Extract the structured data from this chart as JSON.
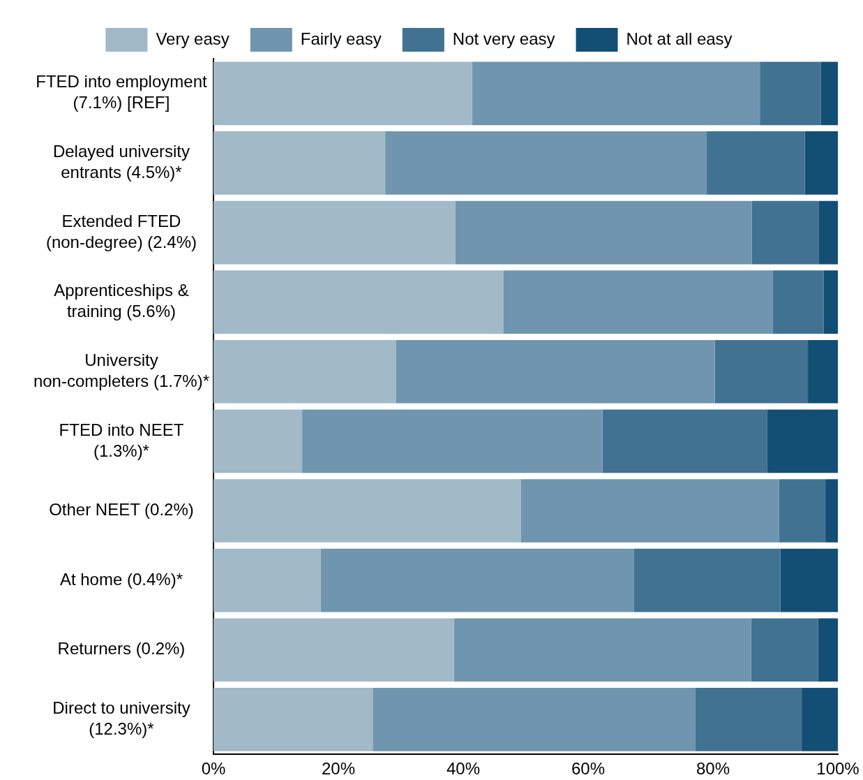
{
  "chart_data": {
    "type": "bar",
    "orientation": "horizontal",
    "stacked": true,
    "categories": [
      "FTED into employment (7.1%) [REF]",
      "Delayed university entrants (4.5%)*",
      "Extended FTED (non-degree) (2.4%)",
      "Apprenticeships & training (5.6%)",
      "University non-completers (1.7%)*",
      "FTED into NEET (1.3%)*",
      "Other NEET (0.2%)",
      "At home (0.4%)*",
      "Returners (0.2%)",
      "Direct to university (12.3%)*"
    ],
    "series": [
      {
        "name": "Very easy",
        "color": "#a2b9c8",
        "values": [
          41.4,
          27.5,
          38.7,
          46.4,
          29.2,
          14.2,
          49.2,
          17.2,
          38.5,
          25.5
        ]
      },
      {
        "name": "Fairly easy",
        "color": "#7095ae",
        "values": [
          46.1,
          51.5,
          47.5,
          43.2,
          51.1,
          48.1,
          41.4,
          50.1,
          47.6,
          51.7
        ]
      },
      {
        "name": "Not very easy",
        "color": "#417292",
        "values": [
          9.8,
          15.7,
          10.7,
          8.1,
          14.9,
          26.4,
          7.4,
          23.5,
          10.7,
          17.0
        ]
      },
      {
        "name": "Not at all easy",
        "color": "#134f74",
        "values": [
          2.7,
          5.3,
          3.1,
          2.3,
          4.8,
          11.3,
          2.0,
          9.2,
          3.2,
          5.8
        ]
      }
    ],
    "xlim": [
      0,
      100
    ],
    "xticks": [
      {
        "value": 0,
        "label": "0%"
      },
      {
        "value": 20,
        "label": "20%"
      },
      {
        "value": 40,
        "label": "40%"
      },
      {
        "value": 60,
        "label": "60%"
      },
      {
        "value": 80,
        "label": "80%"
      },
      {
        "value": 100,
        "label": "100%"
      }
    ],
    "grid": false,
    "legend": "top"
  }
}
